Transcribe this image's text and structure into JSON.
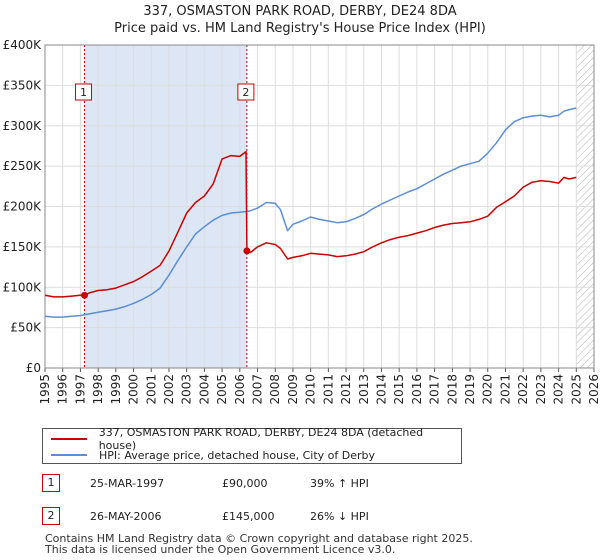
{
  "title_line1": "337, OSMASTON PARK ROAD, DERBY, DE24 8DA",
  "title_line2": "Price paid vs. HM Land Registry's House Price Index (HPI)",
  "colors": {
    "property": "#cc0000",
    "hpi": "#5b8ed6",
    "marker": "#cc0000",
    "shade": "#dce6f5"
  },
  "chart_data": {
    "type": "line",
    "title": "337, OSMASTON PARK ROAD, DERBY, DE24 8DA",
    "subtitle": "Price paid vs. HM Land Registry's House Price Index (HPI)",
    "xlabel": "",
    "ylabel": "",
    "xlim": [
      1995,
      2026
    ],
    "ylim": [
      0,
      400000
    ],
    "yticks": [
      0,
      50000,
      100000,
      150000,
      200000,
      250000,
      300000,
      350000,
      400000
    ],
    "ytick_labels": [
      "£0",
      "£50K",
      "£100K",
      "£150K",
      "£200K",
      "£250K",
      "£300K",
      "£350K",
      "£400K"
    ],
    "xticks": [
      "1995",
      "1996",
      "1997",
      "1998",
      "1999",
      "2000",
      "2001",
      "2002",
      "2003",
      "2004",
      "2005",
      "2006",
      "2007",
      "2008",
      "2009",
      "2010",
      "2011",
      "2012",
      "2013",
      "2014",
      "2015",
      "2016",
      "2017",
      "2018",
      "2019",
      "2020",
      "2021",
      "2022",
      "2023",
      "2024",
      "2025",
      "2026"
    ],
    "grid": true,
    "future_hatch_from": 2025.0,
    "sale_markers": [
      {
        "label": "1",
        "x": 1997.23,
        "y": 90000
      },
      {
        "label": "2",
        "x": 2006.4,
        "y": 145000
      }
    ],
    "series": [
      {
        "name": "337, OSMASTON PARK ROAD, DERBY, DE24 8DA (detached house)",
        "x": [
          1995,
          1995.5,
          1996,
          1996.5,
          1997.0,
          1997.23,
          1997.5,
          1998,
          1998.5,
          1999,
          1999.5,
          2000,
          2000.5,
          2001,
          2001.5,
          2002,
          2002.5,
          2003,
          2003.5,
          2004,
          2004.5,
          2005,
          2005.5,
          2006,
          2006.35,
          2006.4,
          2006.6,
          2007,
          2007.5,
          2008,
          2008.3,
          2008.7,
          2009,
          2009.5,
          2010,
          2010.5,
          2011,
          2011.5,
          2012,
          2012.5,
          2013,
          2013.5,
          2014,
          2014.5,
          2015,
          2015.5,
          2016,
          2016.5,
          2017,
          2017.5,
          2018,
          2018.5,
          2019,
          2019.5,
          2020,
          2020.5,
          2021,
          2021.5,
          2022,
          2022.5,
          2023,
          2023.5,
          2024,
          2024.3,
          2024.6,
          2025
        ],
        "values": [
          90000,
          88000,
          88000,
          89000,
          90000,
          90000,
          93000,
          96000,
          97000,
          99000,
          103000,
          107000,
          113000,
          120000,
          127000,
          145000,
          168000,
          192000,
          205000,
          213000,
          228000,
          259000,
          263000,
          262000,
          268000,
          145000,
          143000,
          150000,
          155000,
          153000,
          148000,
          135000,
          137000,
          139000,
          142000,
          141000,
          140000,
          138000,
          139000,
          141000,
          144000,
          150000,
          155000,
          159000,
          162000,
          164000,
          167000,
          170000,
          174000,
          177000,
          179000,
          180000,
          181000,
          184000,
          188000,
          199000,
          206000,
          213000,
          224000,
          230000,
          232000,
          231000,
          229000,
          236000,
          234000,
          236000
        ]
      },
      {
        "name": "HPI: Average price, detached house, City of Derby",
        "x": [
          1995,
          1995.5,
          1996,
          1996.5,
          1997.0,
          1997.5,
          1998,
          1998.5,
          1999,
          1999.5,
          2000,
          2000.5,
          2001,
          2001.5,
          2002,
          2002.5,
          2003,
          2003.5,
          2004,
          2004.5,
          2005,
          2005.5,
          2006,
          2006.5,
          2007,
          2007.5,
          2008,
          2008.3,
          2008.7,
          2009,
          2009.5,
          2010,
          2010.5,
          2011,
          2011.5,
          2012,
          2012.5,
          2013,
          2013.5,
          2014,
          2014.5,
          2015,
          2015.5,
          2016,
          2016.5,
          2017,
          2017.5,
          2018,
          2018.5,
          2019,
          2019.5,
          2020,
          2020.5,
          2021,
          2021.5,
          2022,
          2022.5,
          2023,
          2023.5,
          2024,
          2024.3,
          2024.6,
          2025
        ],
        "values": [
          64000,
          63000,
          63000,
          64000,
          65000,
          67000,
          69000,
          71000,
          73000,
          76000,
          80000,
          85000,
          91000,
          99000,
          115000,
          133000,
          150000,
          166000,
          175000,
          183000,
          189000,
          192000,
          193000,
          194000,
          198000,
          205000,
          204000,
          196000,
          170000,
          178000,
          182000,
          187000,
          184000,
          182000,
          180000,
          181000,
          185000,
          190000,
          197000,
          203000,
          208000,
          213000,
          218000,
          222000,
          228000,
          234000,
          240000,
          245000,
          250000,
          253000,
          256000,
          266000,
          279000,
          295000,
          305000,
          310000,
          312000,
          313000,
          311000,
          313000,
          318000,
          320000,
          322000
        ]
      }
    ]
  },
  "legend": {
    "property_label": "337, OSMASTON PARK ROAD, DERBY, DE24 8DA (detached house)",
    "hpi_label": "HPI: Average price, detached house, City of Derby"
  },
  "sales": [
    {
      "num": "1",
      "date": "25-MAR-1997",
      "price": "£90,000",
      "hpi": "39% ↑ HPI"
    },
    {
      "num": "2",
      "date": "26-MAY-2006",
      "price": "£145,000",
      "hpi": "26% ↓ HPI"
    }
  ],
  "footer": {
    "line1": "Contains HM Land Registry data © Crown copyright and database right 2025.",
    "line2": "This data is licensed under the Open Government Licence v3.0."
  }
}
